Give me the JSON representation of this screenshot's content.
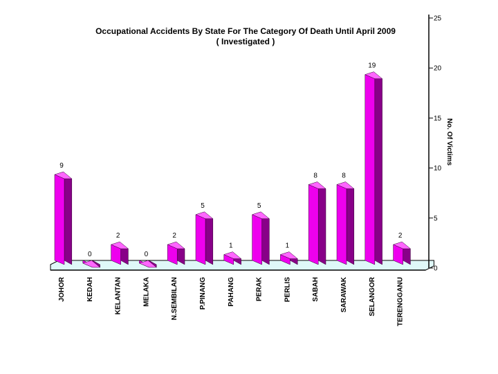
{
  "chart_data": {
    "type": "bar",
    "title": "Occupational Accidents By State For The Category Of Death Until April 2009",
    "subtitle": "( Investigated )",
    "xlabel": "",
    "ylabel": "No. Of Victims",
    "ylim": [
      0,
      25
    ],
    "yticks": [
      0,
      5,
      10,
      15,
      20,
      25
    ],
    "y_axis_side": "right",
    "grid": false,
    "legend": "none",
    "three_d": true,
    "categories": [
      "JOHOR",
      "KEDAH",
      "KELANTAN",
      "MELAKA",
      "N.SEMBILAN",
      "P.PINANG",
      "PAHANG",
      "PERAK",
      "PERLIS",
      "SABAH",
      "SARAWAK",
      "SELANGOR",
      "TERENGGANU"
    ],
    "values": [
      9,
      0,
      2,
      0,
      2,
      5,
      1,
      5,
      1,
      8,
      8,
      19,
      2
    ],
    "data_labels": [
      "9",
      "0",
      "2",
      "0",
      "2",
      "5",
      "1",
      "5",
      "1",
      "8",
      "8",
      "19",
      "2"
    ]
  },
  "colors": {
    "bar_front": "#ee00ee",
    "bar_side": "#880088",
    "bar_top": "#ff66ff",
    "floor": "#dff8f8",
    "axis": "#000000"
  }
}
